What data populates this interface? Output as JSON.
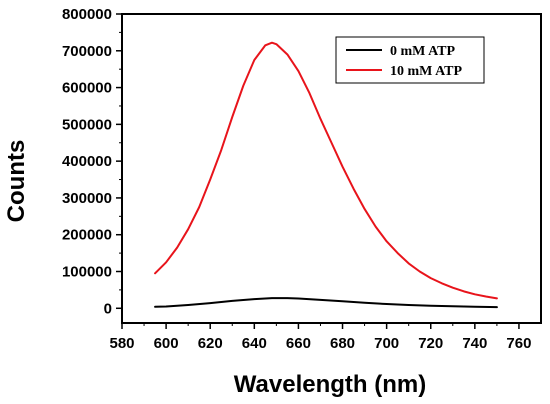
{
  "chart_data": {
    "type": "line",
    "title": "",
    "xlabel": "Wavelength (nm)",
    "ylabel": "Counts",
    "xlim": [
      580,
      770
    ],
    "ylim": [
      -40000,
      800000
    ],
    "x_ticks": [
      580,
      600,
      620,
      640,
      660,
      680,
      700,
      720,
      740,
      760
    ],
    "x_tick_labels": [
      "580",
      "600",
      "620",
      "640",
      "660",
      "680",
      "700",
      "720",
      "740",
      "760"
    ],
    "y_ticks": [
      0,
      100000,
      200000,
      300000,
      400000,
      500000,
      600000,
      700000,
      800000
    ],
    "y_tick_labels": [
      "0",
      "100000",
      "200000",
      "300000",
      "400000",
      "500000",
      "600000",
      "700000",
      "800000"
    ],
    "grid": false,
    "legend_position": "top-right",
    "series": [
      {
        "name": "0 mM ATP",
        "color": "#000000",
        "x": [
          595,
          600,
          610,
          620,
          630,
          640,
          648,
          655,
          660,
          670,
          680,
          690,
          700,
          710,
          720,
          730,
          740,
          750
        ],
        "y": [
          4000,
          5000,
          9000,
          14000,
          20000,
          25000,
          27500,
          27500,
          26500,
          23000,
          19000,
          15000,
          11500,
          9000,
          7000,
          5500,
          4000,
          3000
        ]
      },
      {
        "name": "10 mM ATP",
        "color": "#e8141b",
        "x": [
          595,
          600,
          605,
          610,
          615,
          620,
          625,
          630,
          635,
          640,
          645,
          648,
          650,
          655,
          660,
          665,
          670,
          675,
          680,
          685,
          690,
          695,
          700,
          705,
          710,
          715,
          720,
          725,
          730,
          735,
          740,
          745,
          750
        ],
        "y": [
          95000,
          125000,
          165000,
          215000,
          275000,
          350000,
          430000,
          520000,
          605000,
          675000,
          715000,
          722000,
          718000,
          690000,
          645000,
          585000,
          515000,
          450000,
          385000,
          325000,
          270000,
          222000,
          182000,
          150000,
          122000,
          100000,
          82000,
          68000,
          56000,
          46000,
          38000,
          32000,
          27000
        ]
      }
    ]
  }
}
